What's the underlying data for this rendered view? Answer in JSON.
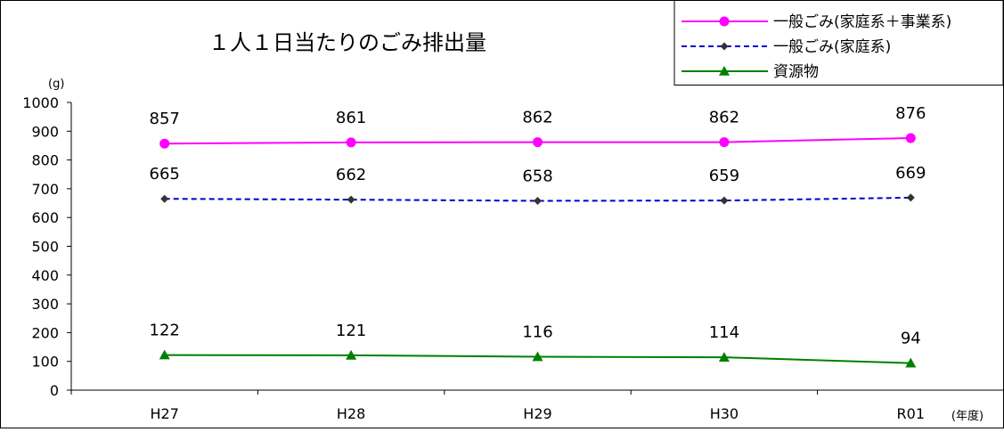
{
  "chart_data": {
    "type": "line",
    "title": "１人１日当たりのごみ排出量",
    "ylabel": "(g)",
    "xlabel": "(年度)",
    "categories": [
      "H27",
      "H28",
      "H29",
      "H30",
      "R01"
    ],
    "ylim": [
      0,
      1000
    ],
    "yticks": [
      0,
      100,
      200,
      300,
      400,
      500,
      600,
      700,
      800,
      900,
      1000
    ],
    "grid": false,
    "legend_position": "top-right",
    "series": [
      {
        "name": "一般ごみ(家庭系＋事業系)",
        "values": [
          857,
          861,
          862,
          862,
          876
        ],
        "color": "#ff00ff",
        "line": "solid",
        "marker": "circle"
      },
      {
        "name": "一般ごみ(家庭系)",
        "values": [
          665,
          662,
          658,
          659,
          669
        ],
        "color": "#0000cc",
        "line": "dashed",
        "marker": "diamond",
        "marker_color": "#333333"
      },
      {
        "name": "資源物",
        "values": [
          122,
          121,
          116,
          114,
          94
        ],
        "color": "#008000",
        "line": "solid",
        "marker": "triangle"
      }
    ]
  }
}
